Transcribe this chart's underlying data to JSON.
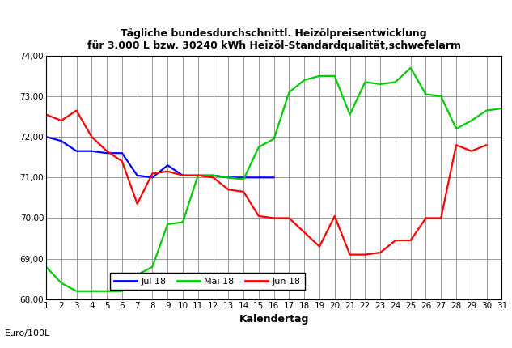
{
  "title_line1": "Tägliche bundesdurchschnittl. Heizölpreisentwicklung",
  "title_line2": "für 3.000 L bzw. 30240 kWh Heizöl-Standardqualität,schwefelarm",
  "xlabel": "Kalendertag",
  "ylabel": "Euro/100L",
  "ylim": [
    68.0,
    74.0
  ],
  "yticks": [
    68.0,
    69.0,
    70.0,
    71.0,
    72.0,
    73.0,
    74.0
  ],
  "xticks": [
    1,
    2,
    3,
    4,
    5,
    6,
    7,
    8,
    9,
    10,
    11,
    12,
    13,
    14,
    15,
    16,
    17,
    18,
    19,
    20,
    21,
    22,
    23,
    24,
    25,
    26,
    27,
    28,
    29,
    30,
    31
  ],
  "series": {
    "Jul 18": {
      "color": "#0000FF",
      "x": [
        1,
        2,
        3,
        4,
        5,
        6,
        7,
        8,
        9,
        10,
        11,
        12,
        13,
        14,
        15,
        16
      ],
      "y": [
        72.0,
        71.9,
        71.65,
        71.65,
        71.6,
        71.6,
        71.05,
        71.0,
        71.3,
        71.05,
        71.05,
        71.05,
        71.0,
        71.0,
        71.0,
        71.0
      ]
    },
    "Mai 18": {
      "color": "#00CC00",
      "x": [
        1,
        2,
        3,
        4,
        5,
        6,
        7,
        8,
        9,
        10,
        11,
        12,
        13,
        14,
        15,
        16,
        17,
        18,
        19,
        20,
        21,
        22,
        23,
        24,
        25,
        26,
        27,
        28,
        29,
        30,
        31
      ],
      "y": [
        68.8,
        68.4,
        68.2,
        68.2,
        68.2,
        68.2,
        68.6,
        68.8,
        69.85,
        69.9,
        71.05,
        71.05,
        71.0,
        70.95,
        71.75,
        71.95,
        73.1,
        73.4,
        73.5,
        73.5,
        72.55,
        73.35,
        73.3,
        73.35,
        73.7,
        73.05,
        73.0,
        72.2,
        72.4,
        72.65,
        72.7
      ]
    },
    "Jun 18": {
      "color": "#FF0000",
      "x": [
        1,
        2,
        3,
        4,
        5,
        6,
        7,
        8,
        9,
        10,
        11,
        12,
        13,
        14,
        15,
        16,
        17,
        18,
        19,
        20,
        21,
        22,
        23,
        24,
        25,
        26,
        27,
        28,
        29,
        30
      ],
      "y": [
        72.55,
        72.4,
        72.65,
        72.0,
        71.65,
        71.4,
        70.35,
        71.1,
        71.15,
        71.05,
        71.05,
        71.0,
        70.7,
        70.65,
        70.05,
        70.0,
        70.0,
        69.65,
        69.3,
        70.05,
        69.1,
        69.1,
        69.15,
        69.45,
        69.45,
        70.0,
        70.0,
        71.8,
        71.65,
        71.8
      ]
    }
  },
  "legend_order": [
    "Jul 18",
    "Mai 18",
    "Jun 18"
  ],
  "background_color": "#FFFFFF",
  "grid_color": "#888888"
}
